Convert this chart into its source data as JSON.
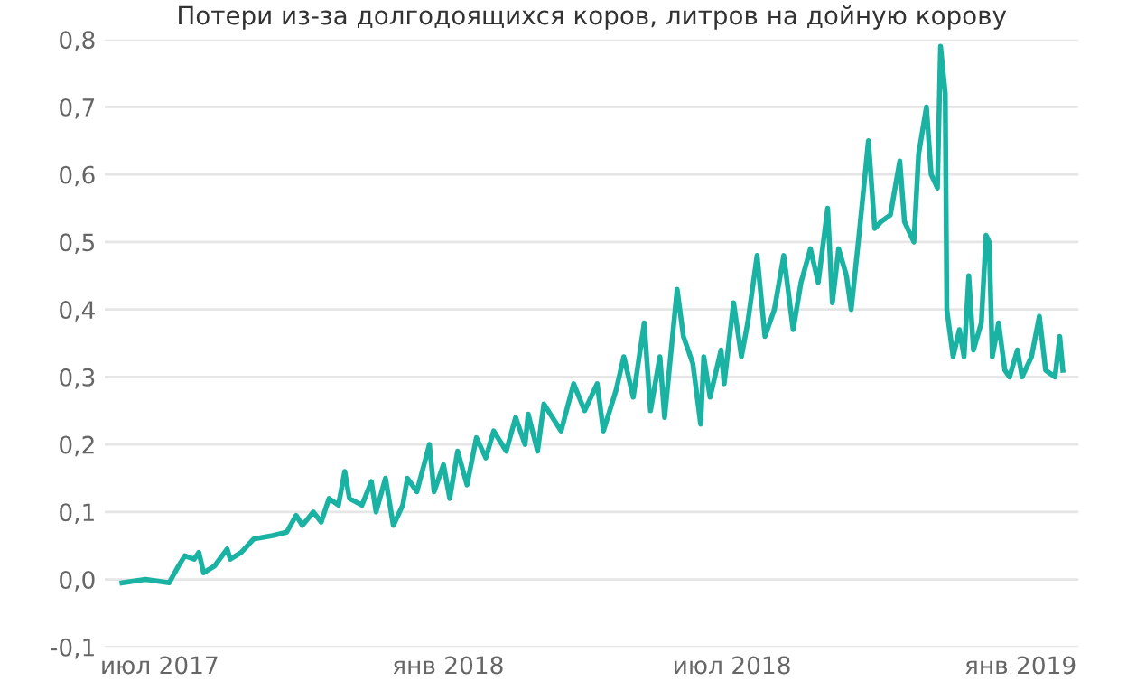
{
  "chart_data": {
    "type": "line",
    "title": "Потери из-за долгодоящихся коров, литров на дойную корову",
    "series": [
      {
        "color": "#1ab3a3",
        "x": [
          "2017-06-07",
          "2017-06-22",
          "2017-07-07",
          "2017-07-13",
          "2017-07-17",
          "2017-07-23",
          "2017-07-26",
          "2017-07-29",
          "2017-08-05",
          "2017-08-13",
          "2017-08-15",
          "2017-08-22",
          "2017-08-30",
          "2017-09-11",
          "2017-09-20",
          "2017-09-26",
          "2017-09-30",
          "2017-10-07",
          "2017-10-12",
          "2017-10-17",
          "2017-10-23",
          "2017-10-27",
          "2017-10-30",
          "2017-11-07",
          "2017-11-13",
          "2017-11-16",
          "2017-11-22",
          "2017-11-27",
          "2017-12-03",
          "2017-12-06",
          "2017-12-12",
          "2017-12-20",
          "2017-12-23",
          "2017-12-29",
          "2018-01-02",
          "2018-01-07",
          "2018-01-13",
          "2018-01-19",
          "2018-01-25",
          "2018-01-30",
          "2018-02-07",
          "2018-02-13",
          "2018-02-19",
          "2018-02-21",
          "2018-02-27",
          "2018-03-03",
          "2018-03-14",
          "2018-03-22",
          "2018-03-29",
          "2018-04-06",
          "2018-04-10",
          "2018-04-18",
          "2018-04-23",
          "2018-04-29",
          "2018-05-06",
          "2018-05-10",
          "2018-05-16",
          "2018-05-19",
          "2018-05-27",
          "2018-05-31",
          "2018-06-06",
          "2018-06-11",
          "2018-06-13",
          "2018-06-17",
          "2018-06-24",
          "2018-06-26",
          "2018-07-02",
          "2018-07-07",
          "2018-07-11",
          "2018-07-17",
          "2018-07-22",
          "2018-07-28",
          "2018-08-03",
          "2018-08-09",
          "2018-08-14",
          "2018-08-20",
          "2018-08-25",
          "2018-08-31",
          "2018-09-03",
          "2018-09-07",
          "2018-09-12",
          "2018-09-15",
          "2018-09-20",
          "2018-09-26",
          "2018-09-30",
          "2018-10-04",
          "2018-10-10",
          "2018-10-16",
          "2018-10-19",
          "2018-10-25",
          "2018-10-28",
          "2018-11-02",
          "2018-11-05",
          "2018-11-09",
          "2018-11-11",
          "2018-11-14",
          "2018-11-15",
          "2018-11-19",
          "2018-11-23",
          "2018-11-26",
          "2018-11-29",
          "2018-12-02",
          "2018-12-07",
          "2018-12-10",
          "2018-12-12",
          "2018-12-14",
          "2018-12-18",
          "2018-12-22",
          "2018-12-25",
          "2018-12-30",
          "2019-01-02",
          "2019-01-08",
          "2019-01-13",
          "2019-01-17",
          "2019-01-23",
          "2019-01-26",
          "2019-01-28"
        ],
        "values": [
          -0.005,
          0.0,
          -0.005,
          0.02,
          0.035,
          0.03,
          0.04,
          0.01,
          0.02,
          0.045,
          0.03,
          0.04,
          0.06,
          0.065,
          0.07,
          0.095,
          0.08,
          0.1,
          0.085,
          0.12,
          0.11,
          0.16,
          0.12,
          0.11,
          0.145,
          0.1,
          0.15,
          0.08,
          0.11,
          0.15,
          0.13,
          0.2,
          0.13,
          0.17,
          0.12,
          0.19,
          0.14,
          0.21,
          0.18,
          0.22,
          0.19,
          0.24,
          0.2,
          0.245,
          0.19,
          0.26,
          0.22,
          0.29,
          0.25,
          0.29,
          0.22,
          0.28,
          0.33,
          0.27,
          0.38,
          0.25,
          0.33,
          0.24,
          0.43,
          0.36,
          0.32,
          0.23,
          0.33,
          0.27,
          0.34,
          0.29,
          0.41,
          0.33,
          0.38,
          0.48,
          0.36,
          0.4,
          0.48,
          0.37,
          0.44,
          0.49,
          0.44,
          0.55,
          0.41,
          0.49,
          0.45,
          0.4,
          0.51,
          0.65,
          0.52,
          0.53,
          0.54,
          0.62,
          0.53,
          0.5,
          0.63,
          0.7,
          0.6,
          0.58,
          0.79,
          0.72,
          0.4,
          0.33,
          0.37,
          0.33,
          0.45,
          0.34,
          0.38,
          0.51,
          0.5,
          0.33,
          0.38,
          0.31,
          0.3,
          0.34,
          0.3,
          0.33,
          0.39,
          0.31,
          0.3,
          0.36,
          0.31
        ]
      }
    ],
    "xlim": [
      "2017-05-27",
      "2019-02-07"
    ],
    "xticks": [
      {
        "value": "2017-07-01",
        "label": "июл 2017"
      },
      {
        "value": "2018-01-01",
        "label": "янв 2018"
      },
      {
        "value": "2018-07-01",
        "label": "июл 2018"
      },
      {
        "value": "2019-01-01",
        "label": "янв 2019"
      }
    ],
    "ylim": [
      -0.1,
      0.8
    ],
    "yticks": [
      {
        "value": -0.1,
        "label": "-0,1"
      },
      {
        "value": 0.0,
        "label": "0,0"
      },
      {
        "value": 0.1,
        "label": "0,1"
      },
      {
        "value": 0.2,
        "label": "0,2"
      },
      {
        "value": 0.3,
        "label": "0,3"
      },
      {
        "value": 0.4,
        "label": "0,4"
      },
      {
        "value": 0.5,
        "label": "0,5"
      },
      {
        "value": 0.6,
        "label": "0,6"
      },
      {
        "value": 0.7,
        "label": "0,7"
      },
      {
        "value": 0.8,
        "label": "0,8"
      }
    ],
    "grid": "y",
    "legend": false,
    "marker": "none",
    "line_style": "solid"
  }
}
